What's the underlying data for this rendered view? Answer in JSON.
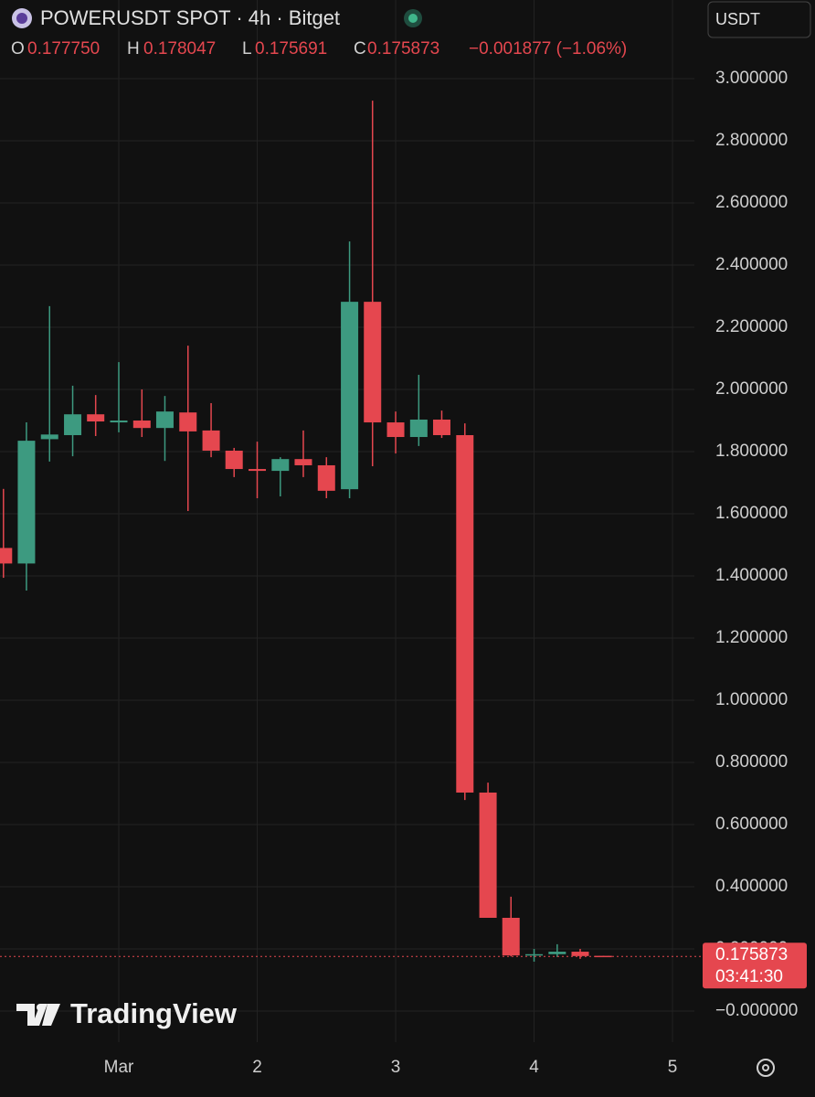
{
  "header": {
    "title": "POWERUSDT SPOT · 4h · Bitget",
    "currency": "USDT",
    "ohlc": [
      {
        "key": "O",
        "text": "0.177750"
      },
      {
        "key": "H",
        "text": "0.178047"
      },
      {
        "key": "L",
        "text": "0.175691"
      },
      {
        "key": "C",
        "text": "0.175873"
      }
    ],
    "change": "−0.001877 (−1.06%)"
  },
  "price_tag": {
    "price": "0.175873",
    "countdown": "03:41:30"
  },
  "logo": "TradingView",
  "chart_data": {
    "type": "candlestick",
    "x": [
      0.167,
      0.333,
      0.5,
      0.667,
      0.833,
      1,
      1.167,
      1.333,
      1.5,
      1.667,
      1.833,
      2,
      2.167,
      2.333,
      2.5,
      2.667,
      2.833,
      3,
      3.167,
      3.333,
      3.5,
      3.667,
      3.833,
      4,
      4.167,
      4.333,
      4.5
    ],
    "open": [
      1.49,
      1.44,
      1.84,
      1.853,
      1.92,
      1.894,
      1.9,
      1.876,
      1.926,
      1.868,
      1.803,
      1.744,
      1.738,
      1.776,
      1.756,
      1.679,
      2.282,
      1.894,
      1.847,
      1.903,
      1.853,
      0.703,
      0.3,
      0.179,
      0.183,
      0.191,
      0.17775
    ],
    "high": [
      1.68,
      1.894,
      2.268,
      2.012,
      1.982,
      2.088,
      2.0,
      1.979,
      2.141,
      1.956,
      1.812,
      1.832,
      1.782,
      1.868,
      1.782,
      2.476,
      2.929,
      1.929,
      2.047,
      1.932,
      1.891,
      0.735,
      0.368,
      0.2,
      0.215,
      0.2,
      0.178047
    ],
    "low": [
      1.394,
      1.353,
      1.768,
      1.785,
      1.85,
      1.862,
      1.847,
      1.77,
      1.609,
      1.782,
      1.718,
      1.65,
      1.656,
      1.718,
      1.65,
      1.65,
      1.753,
      1.794,
      1.818,
      1.844,
      0.679,
      0.3,
      0.176,
      0.159,
      0.174,
      0.168,
      0.175691
    ],
    "close": [
      1.44,
      1.835,
      1.855,
      1.92,
      1.897,
      1.9,
      1.876,
      1.929,
      1.865,
      1.803,
      1.744,
      1.738,
      1.776,
      1.756,
      1.674,
      2.282,
      1.894,
      1.847,
      1.903,
      1.853,
      0.703,
      0.3,
      0.179,
      0.183,
      0.191,
      0.177,
      0.175873
    ],
    "up_color": "#3d9a80",
    "down_color": "#e5474f",
    "xlim": [
      0.142,
      5.158
    ],
    "xticks": [
      {
        "value": 1,
        "label": "Mar"
      },
      2,
      3,
      4,
      5
    ],
    "ylim": [
      -0.1,
      3.253
    ],
    "yticks": [
      {
        "value": 3,
        "label": "3.000000"
      },
      {
        "value": 2.8,
        "label": "2.800000"
      },
      {
        "value": 2.6,
        "label": "2.600000"
      },
      {
        "value": 2.4,
        "label": "2.400000"
      },
      {
        "value": 2.2,
        "label": "2.200000"
      },
      {
        "value": 2,
        "label": "2.000000"
      },
      {
        "value": 1.8,
        "label": "1.800000"
      },
      {
        "value": 1.6,
        "label": "1.600000"
      },
      {
        "value": 1.4,
        "label": "1.400000"
      },
      {
        "value": 1.2,
        "label": "1.200000"
      },
      {
        "value": 1,
        "label": "1.000000"
      },
      {
        "value": 0.8,
        "label": "0.800000"
      },
      {
        "value": 0.6,
        "label": "0.600000"
      },
      {
        "value": 0.4,
        "label": "0.400000"
      },
      {
        "value": 0.2,
        "label": "0.200000"
      },
      {
        "value": 0,
        "label": "−0.000000"
      }
    ],
    "grid": true,
    "last_price": 0.175873
  }
}
